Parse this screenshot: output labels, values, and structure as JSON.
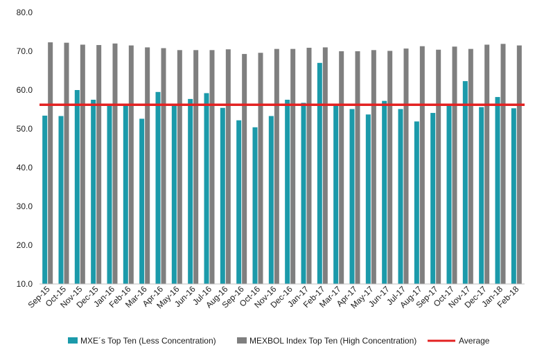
{
  "chart_data": {
    "type": "bar",
    "categories": [
      "Sep-15",
      "Oct-15",
      "Nov-15",
      "Dec-15",
      "Jan-16",
      "Feb-16",
      "Mar-16",
      "Apr-16",
      "May-16",
      "Jun-16",
      "Jul-16",
      "Aug-16",
      "Sep-16",
      "Oct-16",
      "Nov-16",
      "Dec-16",
      "Jan-17",
      "Feb-17",
      "Mar-17",
      "Apr-17",
      "May-17",
      "Jun-17",
      "Jul-17",
      "Aug-17",
      "Sep-17",
      "Oct-17",
      "Nov-17",
      "Dec-17",
      "Jan-18",
      "Feb-18"
    ],
    "series": [
      {
        "name": "MXE´s Top Ten (Less Concentration)",
        "color": "#1b9aaa",
        "values": [
          53.4,
          53.3,
          60.0,
          57.5,
          56.0,
          55.9,
          52.6,
          59.5,
          55.9,
          57.7,
          59.2,
          55.4,
          52.2,
          50.4,
          53.3,
          57.5,
          56.7,
          67.0,
          55.9,
          55.1,
          53.7,
          57.2,
          55.1,
          51.9,
          54.1,
          56.0,
          62.3,
          55.6,
          58.2,
          55.3
        ]
      },
      {
        "name": "MEXBOL Index Top Ten (High Concentration)",
        "color": "#7f7f7f",
        "values": [
          72.3,
          72.2,
          71.7,
          71.6,
          72.0,
          71.5,
          71.0,
          70.8,
          70.3,
          70.3,
          70.3,
          70.5,
          69.3,
          69.6,
          70.6,
          70.6,
          70.9,
          71.0,
          70.0,
          70.0,
          70.3,
          70.1,
          70.7,
          71.3,
          70.4,
          71.2,
          70.6,
          71.7,
          71.9,
          71.5
        ]
      }
    ],
    "average": {
      "name": "Average",
      "value": 56.2,
      "color": "#e32222"
    },
    "y_ticks": [
      "10.0",
      "20.0",
      "30.0",
      "40.0",
      "50.0",
      "60.0",
      "70.0",
      "80.0"
    ],
    "ylim": [
      10,
      80
    ],
    "legend_position": "bottom",
    "grid": false
  }
}
